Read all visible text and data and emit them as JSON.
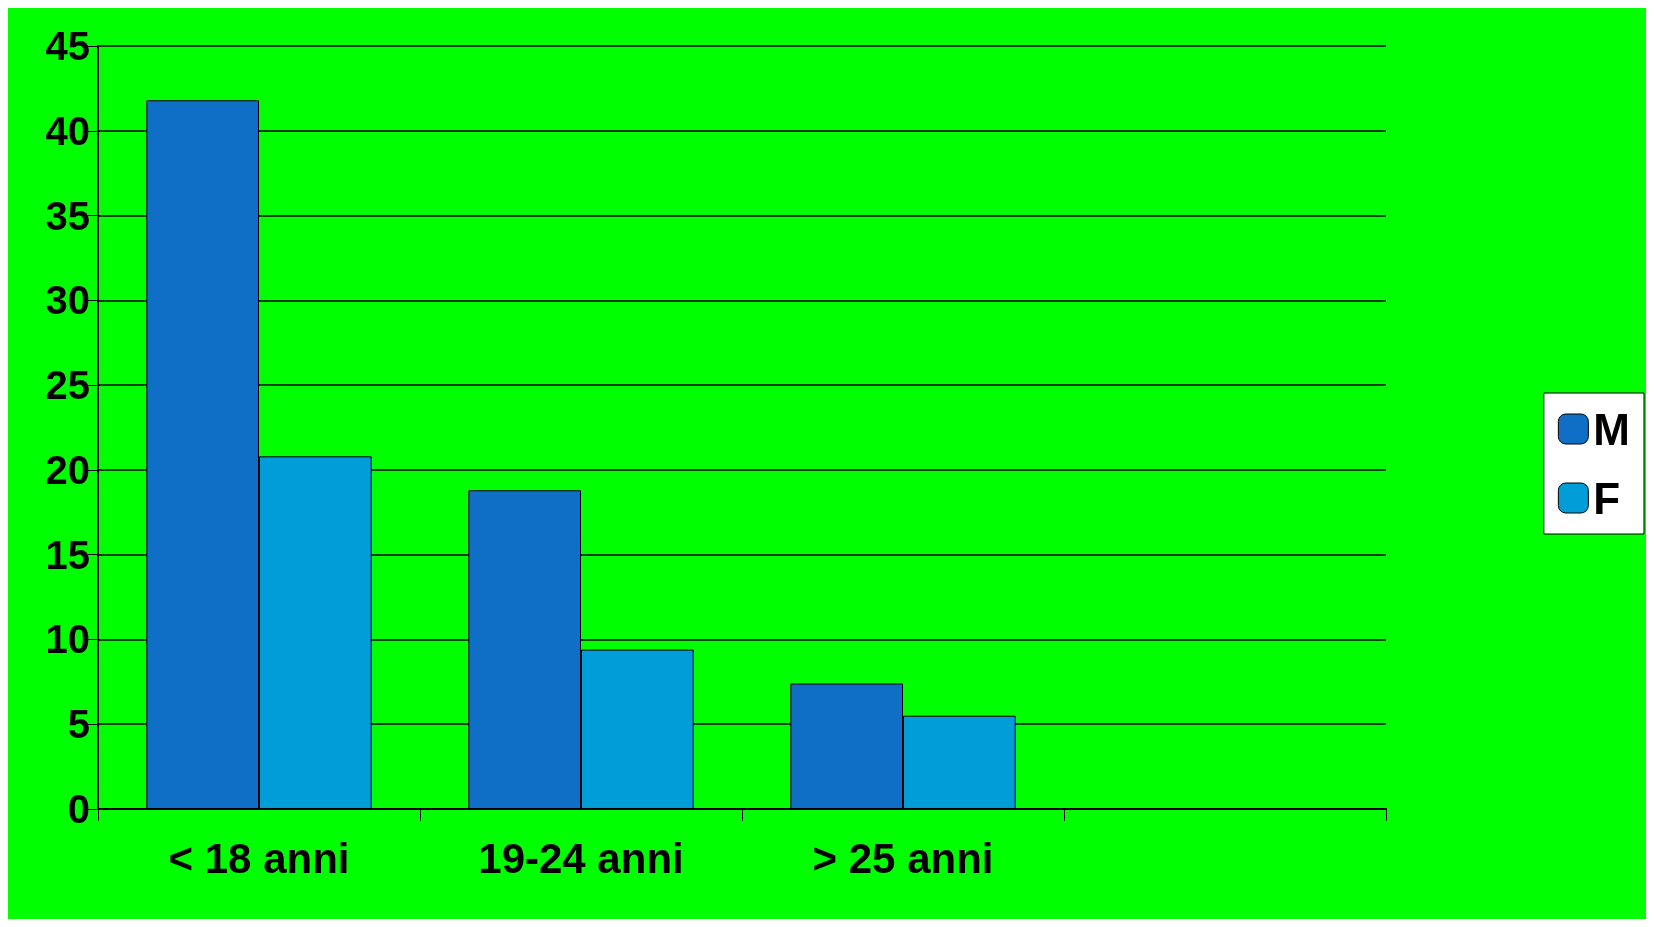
{
  "chart_data": {
    "type": "bar",
    "categories": [
      "< 18 anni",
      "19-24 anni",
      "> 25 anni",
      null
    ],
    "series": [
      {
        "name": "M",
        "color": "#0f6fc6",
        "values": [
          41.8,
          18.8,
          7.4,
          null
        ]
      },
      {
        "name": "F",
        "color": "#009dd9",
        "values": [
          20.8,
          9.4,
          5.5,
          null
        ]
      }
    ],
    "ylim": [
      0,
      45
    ],
    "yticks": [
      0,
      5,
      10,
      15,
      20,
      25,
      30,
      35,
      40,
      45
    ],
    "grid": "y",
    "legend": "right"
  }
}
